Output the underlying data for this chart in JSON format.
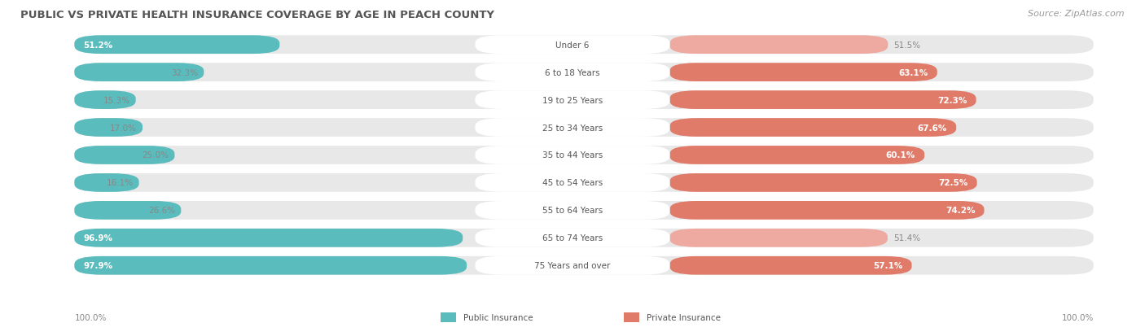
{
  "title": "PUBLIC VS PRIVATE HEALTH INSURANCE COVERAGE BY AGE IN PEACH COUNTY",
  "source": "Source: ZipAtlas.com",
  "categories": [
    "Under 6",
    "6 to 18 Years",
    "19 to 25 Years",
    "25 to 34 Years",
    "35 to 44 Years",
    "45 to 54 Years",
    "55 to 64 Years",
    "65 to 74 Years",
    "75 Years and over"
  ],
  "public_values": [
    51.2,
    32.3,
    15.3,
    17.0,
    25.0,
    16.1,
    26.6,
    96.9,
    97.9
  ],
  "private_values": [
    51.5,
    63.1,
    72.3,
    67.6,
    60.1,
    72.5,
    74.2,
    51.4,
    57.1
  ],
  "public_color": "#5bbcbd",
  "private_color_strong": "#e07b6a",
  "private_color_light": "#eeaaa0",
  "public_label": "Public Insurance",
  "private_label": "Private Insurance",
  "row_bg_color": "#e8e8e8",
  "max_value": 100.0,
  "title_fontsize": 9.5,
  "source_fontsize": 8,
  "value_fontsize": 7.5,
  "category_fontsize": 7.5,
  "footer_fontsize": 7.5,
  "private_strong_threshold": 55.0
}
